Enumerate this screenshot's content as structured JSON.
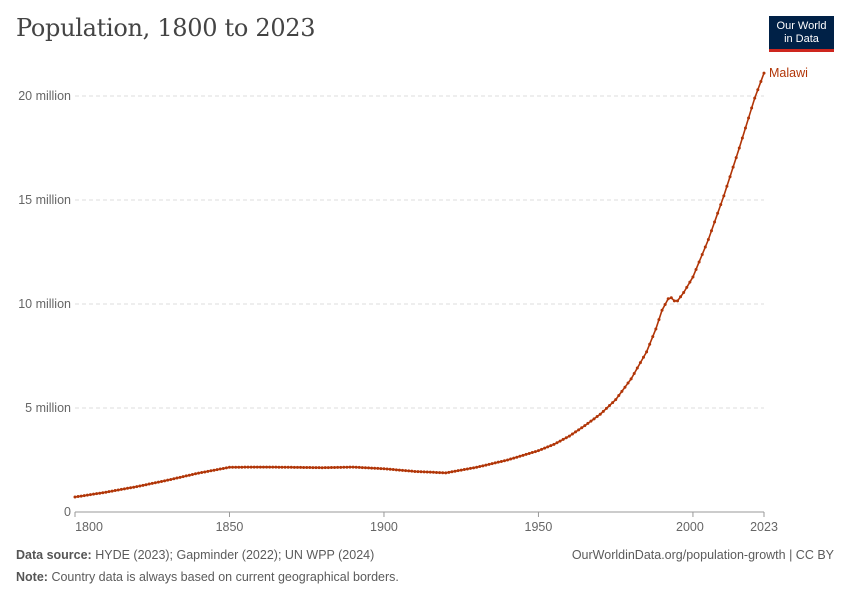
{
  "header": {
    "title": "Population, 1800 to 2023",
    "logo_line1": "Our World",
    "logo_line2": "in Data"
  },
  "footer": {
    "source_label": "Data source:",
    "source_text": "HYDE (2023); Gapminder (2022); UN WPP (2024)",
    "credit": "OurWorldinData.org/population-growth | CC BY",
    "note_label": "Note:",
    "note_text": "Country data is always based on current geographical borders."
  },
  "colors": {
    "series": "#b13507",
    "grid": "#dddddd",
    "axis": "#666666"
  },
  "chart_data": {
    "type": "line",
    "xlim": [
      1800,
      2023
    ],
    "ylim": [
      0,
      21000000
    ],
    "x_ticks": [
      1800,
      1850,
      1900,
      1950,
      2000,
      2023
    ],
    "x_tick_labels": [
      "1800",
      "1850",
      "1900",
      "1950",
      "2000",
      "2023"
    ],
    "y_ticks": [
      0,
      5000000,
      10000000,
      15000000,
      20000000
    ],
    "y_tick_labels": [
      "0",
      "5 million",
      "10 million",
      "15 million",
      "20 million"
    ],
    "grid": "horizontal dashed",
    "series": [
      {
        "name": "Malawi",
        "x": [
          1800,
          1810,
          1820,
          1830,
          1840,
          1850,
          1860,
          1870,
          1880,
          1890,
          1900,
          1910,
          1920,
          1930,
          1940,
          1950,
          1955,
          1960,
          1965,
          1970,
          1975,
          1980,
          1985,
          1988,
          1990,
          1992,
          1993,
          1994,
          1995,
          1997,
          2000,
          2005,
          2010,
          2015,
          2020,
          2023
        ],
        "y": [
          720000,
          950000,
          1220000,
          1530000,
          1870000,
          2150000,
          2160000,
          2150000,
          2130000,
          2160000,
          2080000,
          1950000,
          1880000,
          2150000,
          2500000,
          2950000,
          3250000,
          3650000,
          4150000,
          4700000,
          5400000,
          6400000,
          7700000,
          8800000,
          9700000,
          10250000,
          10300000,
          10150000,
          10150000,
          10550000,
          11300000,
          13100000,
          15200000,
          17500000,
          19900000,
          21100000
        ]
      }
    ]
  }
}
